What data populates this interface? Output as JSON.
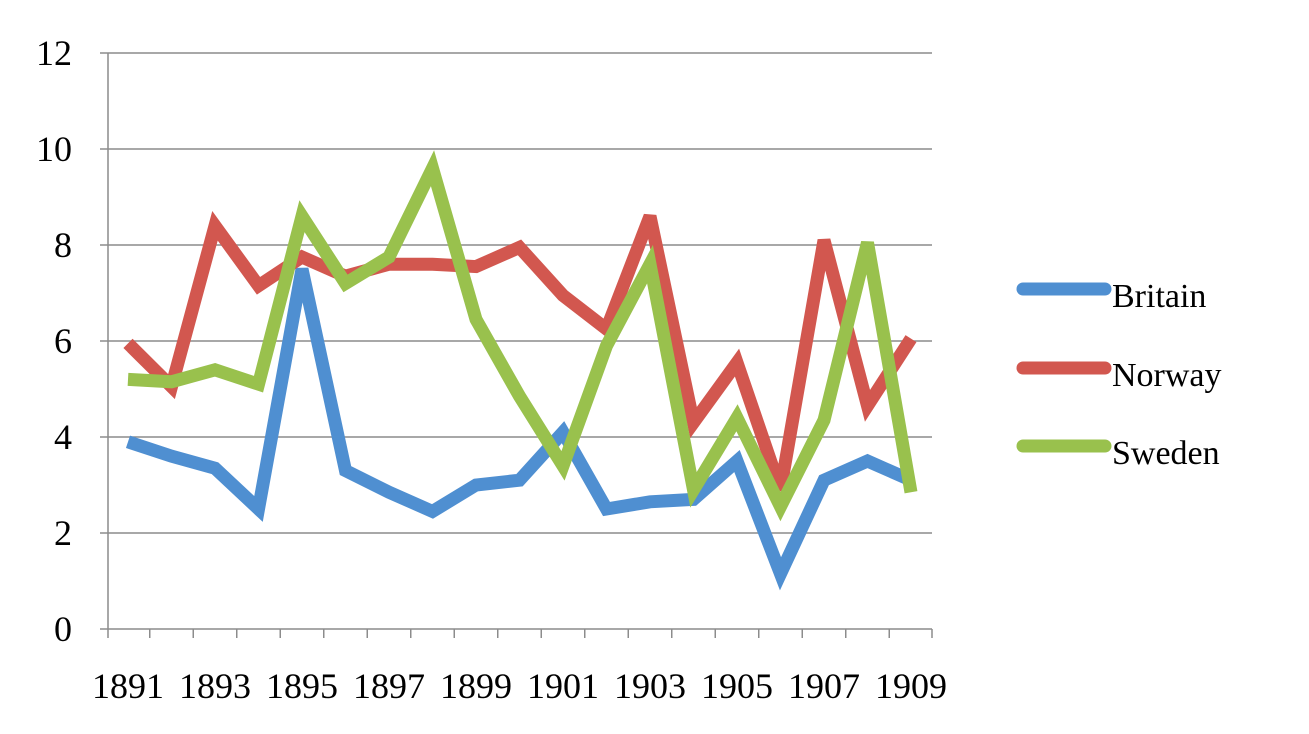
{
  "chart_data": {
    "type": "line",
    "title": "",
    "xlabel": "",
    "ylabel": "",
    "x": [
      1891,
      1892,
      1893,
      1894,
      1895,
      1896,
      1897,
      1898,
      1899,
      1900,
      1901,
      1902,
      1903,
      1904,
      1905,
      1906,
      1907,
      1908,
      1909
    ],
    "x_tick_labels": [
      "1891",
      "1893",
      "1895",
      "1897",
      "1899",
      "1901",
      "1903",
      "1905",
      "1907",
      "1909"
    ],
    "x_tick_values": [
      1891,
      1893,
      1895,
      1897,
      1899,
      1901,
      1903,
      1905,
      1907,
      1909
    ],
    "y_tick_labels": [
      "0",
      "2",
      "4",
      "6",
      "8",
      "10",
      "12"
    ],
    "y_tick_values": [
      0,
      2,
      4,
      6,
      8,
      10,
      12
    ],
    "ylim": [
      0,
      12
    ],
    "grid": "horizontal",
    "legend_position": "right",
    "series": [
      {
        "name": "Britain",
        "color": "#4f8fd1",
        "values": [
          3.9,
          3.6,
          3.35,
          2.5,
          7.5,
          3.3,
          2.85,
          2.45,
          3.0,
          3.1,
          4.1,
          2.5,
          2.65,
          2.7,
          3.5,
          1.15,
          3.1,
          3.5,
          3.1
        ]
      },
      {
        "name": "Norway",
        "color": "#d2574f",
        "values": [
          5.95,
          5.05,
          8.4,
          7.15,
          7.75,
          7.35,
          7.6,
          7.6,
          7.55,
          7.95,
          6.95,
          6.25,
          8.6,
          4.3,
          5.55,
          2.9,
          8.1,
          4.65,
          6.05
        ]
      },
      {
        "name": "Sweden",
        "color": "#99c14d",
        "values": [
          5.2,
          5.15,
          5.4,
          5.1,
          8.6,
          7.2,
          7.75,
          9.6,
          6.45,
          4.85,
          3.4,
          5.9,
          7.6,
          2.9,
          4.4,
          2.55,
          4.35,
          8.05,
          2.85
        ]
      }
    ]
  }
}
